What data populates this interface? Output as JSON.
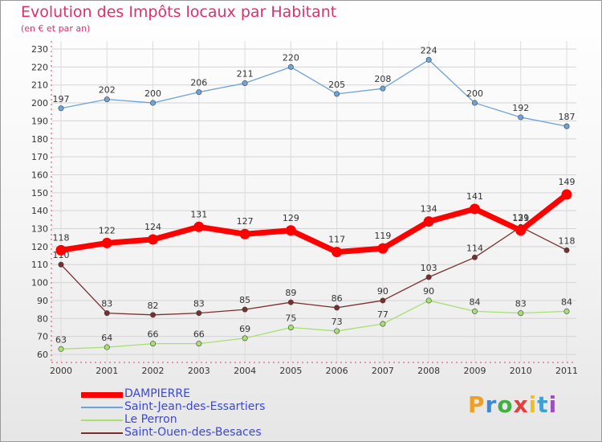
{
  "header": {
    "title": "Evolution des Impôts locaux par Habitant",
    "subtitle": "(en € et par an)"
  },
  "logo": {
    "text": "Proxiti"
  },
  "chart_data": {
    "type": "line",
    "title": "Evolution des Impôts locaux par Habitant",
    "subtitle": "(en € et par an)",
    "xlabel": "",
    "ylabel": "",
    "x": [
      "2000",
      "2001",
      "2002",
      "2003",
      "2004",
      "2005",
      "2006",
      "2007",
      "2008",
      "2009",
      "2010",
      "2011"
    ],
    "ylim": [
      60,
      230
    ],
    "yticks": [
      60,
      70,
      80,
      90,
      100,
      110,
      120,
      130,
      140,
      150,
      160,
      170,
      180,
      190,
      200,
      210,
      220,
      230
    ],
    "grid": true,
    "legend_position": "bottom-left",
    "series": [
      {
        "name": "DAMPIERRE",
        "color": "#ff0000",
        "values": [
          118,
          122,
          124,
          131,
          127,
          129,
          117,
          119,
          134,
          141,
          129,
          149
        ]
      },
      {
        "name": "Saint-Jean-des-Essartiers",
        "color": "#6ea3d8",
        "values": [
          197,
          202,
          200,
          206,
          211,
          220,
          205,
          208,
          224,
          200,
          192,
          187
        ]
      },
      {
        "name": "Le Perron",
        "color": "#a8e070",
        "values": [
          63,
          64,
          66,
          66,
          69,
          75,
          73,
          77,
          90,
          84,
          83,
          84
        ]
      },
      {
        "name": "Saint-Ouen-des-Besaces",
        "color": "#7a2e2e",
        "values": [
          110,
          83,
          82,
          83,
          85,
          89,
          86,
          90,
          103,
          114,
          131,
          118
        ]
      }
    ]
  }
}
